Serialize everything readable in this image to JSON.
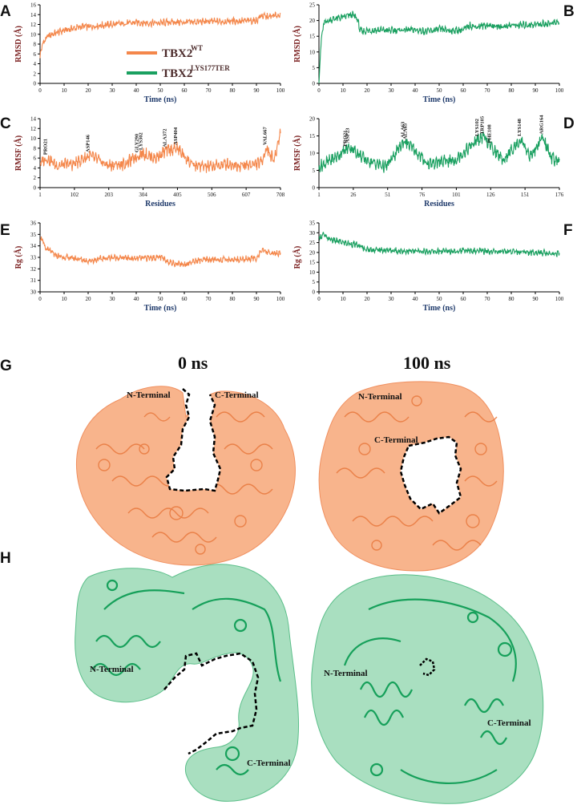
{
  "panel_letters": {
    "A": "A",
    "B": "B",
    "C": "C",
    "D": "D",
    "E": "E",
    "F": "F",
    "G": "G",
    "H": "H"
  },
  "colors": {
    "wt": "#f4874b",
    "mut": "#1aa060",
    "mut_surface": "#8fd4ae",
    "wt_surface": "#f7b08a"
  },
  "legend": {
    "wt_name": "TBX2",
    "wt_sup": "WT",
    "mut_name": "TBX2",
    "mut_sup": "LYS177TER"
  },
  "chart_data": [
    {
      "id": "A",
      "type": "line",
      "xlabel": "Time (ns)",
      "ylabel": "RMSD (Å)",
      "xlim": [
        0,
        100
      ],
      "ylim": [
        0,
        16
      ],
      "xticks": [
        "0",
        "10",
        "20",
        "30",
        "40",
        "50",
        "60",
        "70",
        "80",
        "90",
        "100"
      ],
      "yticks": [
        "0",
        "2",
        "4",
        "6",
        "8",
        "10",
        "12",
        "14",
        "16"
      ],
      "x": [
        0,
        1,
        2,
        3,
        5,
        8,
        10,
        12,
        15,
        18,
        20,
        25,
        30,
        35,
        40,
        45,
        50,
        55,
        60,
        65,
        70,
        75,
        80,
        85,
        90,
        92,
        95,
        98,
        100
      ],
      "y": [
        5.5,
        8.0,
        8.8,
        9.5,
        10.0,
        10.5,
        10.8,
        11.0,
        11.3,
        11.6,
        11.5,
        11.8,
        12.0,
        12.2,
        12.4,
        12.3,
        12.3,
        12.5,
        12.4,
        12.5,
        12.6,
        12.6,
        12.7,
        12.7,
        12.8,
        13.8,
        13.5,
        13.8,
        14.0
      ]
    },
    {
      "id": "B",
      "type": "line",
      "xlabel": "Time (ns)",
      "ylabel": "RMSD (Å)",
      "xlim": [
        0,
        100
      ],
      "ylim": [
        0,
        25
      ],
      "xticks": [
        "0",
        "10",
        "20",
        "30",
        "40",
        "50",
        "60",
        "70",
        "80",
        "90",
        "100"
      ],
      "yticks": [
        "0",
        "5",
        "10",
        "15",
        "20",
        "25"
      ],
      "x": [
        0,
        0.5,
        1,
        2,
        4,
        6,
        8,
        10,
        12,
        14,
        16,
        17,
        18,
        20,
        25,
        30,
        35,
        40,
        45,
        50,
        55,
        60,
        63,
        65,
        70,
        75,
        80,
        85,
        90,
        95,
        100
      ],
      "y": [
        0,
        8,
        14,
        19,
        20,
        20.5,
        20.8,
        21,
        21.5,
        21.8,
        20.5,
        17,
        16.5,
        16.8,
        17,
        16.8,
        17,
        17,
        16.5,
        17.2,
        16.8,
        17,
        18.5,
        18,
        18.5,
        18,
        18.5,
        18.5,
        18.8,
        19,
        19.5
      ]
    },
    {
      "id": "C",
      "type": "line",
      "xlabel": "Residues",
      "ylabel": "RMSF (Å)",
      "xlim": [
        1,
        708
      ],
      "ylim": [
        0,
        14
      ],
      "xticks": [
        "1",
        "102",
        "203",
        "304",
        "405",
        "506",
        "607",
        "708"
      ],
      "yticks": [
        "0",
        "2",
        "4",
        "6",
        "8",
        "10",
        "12",
        "14"
      ],
      "annotations": [
        {
          "label": "PRO21",
          "x": 21,
          "y": 6
        },
        {
          "label": "ASP146",
          "x": 146,
          "y": 6.5
        },
        {
          "label": "GLY290",
          "x": 290,
          "y": 6.5
        },
        {
          "label": "LYS302",
          "x": 302,
          "y": 7
        },
        {
          "label": "ALA372",
          "x": 372,
          "y": 7.5
        },
        {
          "label": "ASP404",
          "x": 404,
          "y": 8
        },
        {
          "label": "VAL667",
          "x": 667,
          "y": 8
        }
      ],
      "x": [
        1,
        21,
        50,
        100,
        146,
        200,
        250,
        290,
        302,
        340,
        372,
        404,
        450,
        500,
        550,
        600,
        650,
        667,
        690,
        708
      ],
      "y": [
        5,
        6,
        4.5,
        4.8,
        6.5,
        4.5,
        4.8,
        6.5,
        7,
        6,
        7.5,
        8,
        4.5,
        4.2,
        4.8,
        4.5,
        5,
        8,
        5.5,
        11.5
      ]
    },
    {
      "id": "D",
      "type": "line",
      "xlabel": "Residues",
      "ylabel": "RMSF (Å)",
      "xlim": [
        1,
        176
      ],
      "ylim": [
        0,
        20
      ],
      "xticks": [
        "1",
        "26",
        "51",
        "76",
        "101",
        "126",
        "151",
        "176"
      ],
      "yticks": [
        "0",
        "5",
        "10",
        "15",
        "20"
      ],
      "annotations": [
        {
          "label": "PRO21",
          "x": 21,
          "y": 11
        },
        {
          "label": "ASP23",
          "x": 23,
          "y": 12
        },
        {
          "label": "ALA63",
          "x": 63,
          "y": 13.5
        },
        {
          "label": "ALA65",
          "x": 65,
          "y": 13
        },
        {
          "label": "LYS102",
          "x": 117,
          "y": 14
        },
        {
          "label": "TRP105",
          "x": 121,
          "y": 14.5
        },
        {
          "label": "PHE108",
          "x": 126,
          "y": 12
        },
        {
          "label": "LYS148",
          "x": 148,
          "y": 14
        },
        {
          "label": "ARG164",
          "x": 164,
          "y": 14.5
        }
      ],
      "x": [
        1,
        10,
        21,
        23,
        35,
        50,
        63,
        65,
        80,
        100,
        117,
        121,
        126,
        135,
        148,
        155,
        164,
        170,
        176
      ],
      "y": [
        6,
        8,
        11,
        12,
        8,
        6,
        13.5,
        13,
        7,
        8,
        14,
        14.5,
        12,
        8,
        14,
        9,
        14.5,
        9,
        7
      ]
    },
    {
      "id": "E",
      "type": "line",
      "xlabel": "Time (ns)",
      "ylabel": "Rg (Å)",
      "xlim": [
        0,
        100
      ],
      "ylim": [
        30,
        36
      ],
      "xticks": [
        "0",
        "10",
        "20",
        "30",
        "40",
        "50",
        "60",
        "70",
        "80",
        "90",
        "100"
      ],
      "yticks": [
        "30",
        "31",
        "32",
        "33",
        "34",
        "35",
        "36"
      ],
      "x": [
        0,
        1,
        2,
        4,
        6,
        10,
        15,
        20,
        30,
        40,
        50,
        55,
        60,
        65,
        70,
        80,
        90,
        92,
        95,
        100
      ],
      "y": [
        34.8,
        34.5,
        33.8,
        33.6,
        33.2,
        33.0,
        32.9,
        32.7,
        33.0,
        32.9,
        33.0,
        32.5,
        32.4,
        32.7,
        32.8,
        32.8,
        32.9,
        33.6,
        33.4,
        33.3
      ]
    },
    {
      "id": "F",
      "type": "line",
      "xlabel": "Time (ns)",
      "ylabel": "Rg (Å)",
      "xlim": [
        0,
        100
      ],
      "ylim": [
        0,
        35
      ],
      "xticks": [
        "0",
        "10",
        "20",
        "30",
        "40",
        "50",
        "60",
        "70",
        "80",
        "90",
        "100"
      ],
      "yticks": [
        "0",
        "5",
        "10",
        "15",
        "20",
        "25",
        "30",
        "35"
      ],
      "x": [
        0,
        1,
        2,
        3,
        5,
        10,
        15,
        18,
        20,
        30,
        40,
        50,
        60,
        70,
        80,
        90,
        100
      ],
      "y": [
        27,
        28.5,
        29,
        27.5,
        26.5,
        25,
        24,
        22.5,
        21.5,
        21,
        20.5,
        20.5,
        21,
        20.5,
        20.5,
        20,
        19.5
      ]
    }
  ],
  "structures": {
    "G": {
      "title_left": "0 ns",
      "title_right": "100 ns",
      "left_labels": {
        "n": "N-Terminal",
        "c": "C-Terminal"
      },
      "right_labels": {
        "n": "N-Terminal",
        "c": "C-Terminal"
      }
    },
    "H": {
      "left_labels": {
        "n": "N-Terminal",
        "c": "C-Terminal"
      },
      "right_labels": {
        "n": "N-Terminal",
        "c": "C-Terminal"
      }
    }
  }
}
